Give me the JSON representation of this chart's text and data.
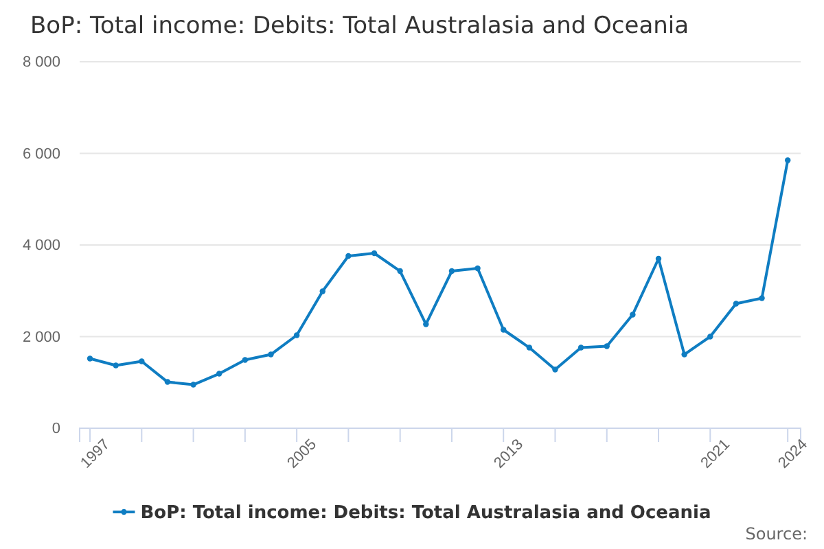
{
  "chart_data": {
    "type": "line",
    "title": "BoP: Total income: Debits: Total Australasia and Oceania",
    "x": [
      1997,
      1998,
      1999,
      2000,
      2001,
      2002,
      2003,
      2004,
      2005,
      2006,
      2007,
      2008,
      2009,
      2010,
      2011,
      2012,
      2013,
      2014,
      2015,
      2016,
      2017,
      2018,
      2019,
      2020,
      2021,
      2022,
      2023,
      2024
    ],
    "series": [
      {
        "name": "BoP: Total income: Debits: Total Australasia and Oceania",
        "color": "#0f7dc2",
        "values": [
          1520,
          1370,
          1460,
          1010,
          950,
          1190,
          1490,
          1610,
          2030,
          2990,
          3760,
          3820,
          3430,
          2270,
          3430,
          3490,
          2150,
          1760,
          1280,
          1760,
          1790,
          2480,
          3700,
          1610,
          2000,
          2720,
          2840,
          5850
        ]
      }
    ],
    "xlim": [
      1996.6,
      2024.5
    ],
    "xticks": [
      {
        "value": 1997,
        "label": "1997"
      },
      {
        "value": 1999,
        "label": null
      },
      {
        "value": 2001,
        "label": null
      },
      {
        "value": 2003,
        "label": null
      },
      {
        "value": 2005,
        "label": "2005"
      },
      {
        "value": 2007,
        "label": null
      },
      {
        "value": 2009,
        "label": null
      },
      {
        "value": 2011,
        "label": null
      },
      {
        "value": 2013,
        "label": "2013"
      },
      {
        "value": 2015,
        "label": null
      },
      {
        "value": 2017,
        "label": null
      },
      {
        "value": 2019,
        "label": null
      },
      {
        "value": 2021,
        "label": "2021"
      },
      {
        "value": 2024,
        "label": "2024"
      }
    ],
    "ylim": [
      0,
      8000
    ],
    "yticks": [
      {
        "value": 0,
        "label": "0"
      },
      {
        "value": 2000,
        "label": "2 000"
      },
      {
        "value": 4000,
        "label": "4 000"
      },
      {
        "value": 6000,
        "label": "6 000"
      },
      {
        "value": 8000,
        "label": "8 000"
      }
    ],
    "grid": "y",
    "legend": "bottom",
    "marker": "circle",
    "line_style": "solid",
    "annotations": [
      "Source:"
    ]
  }
}
